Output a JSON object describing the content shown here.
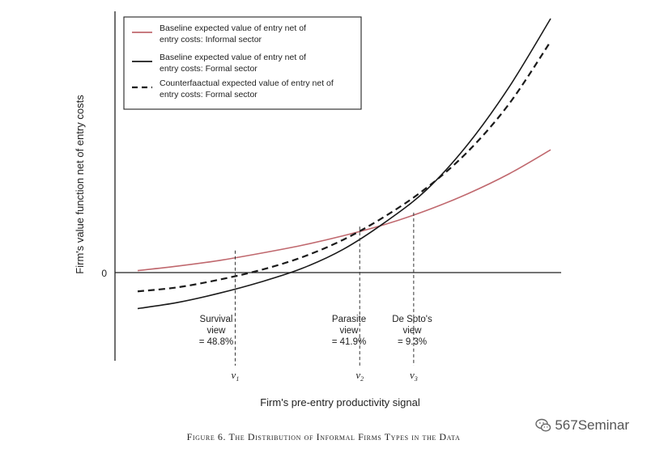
{
  "chart_data": {
    "type": "line",
    "xlabel": "Firm's pre-entry productivity signal",
    "ylabel": "Firm's value function net of entry costs",
    "zero_label": "0",
    "grid": false,
    "legend_placement": "top-left",
    "series": [
      {
        "name": "Baseline expected value of entry net of entry costs: Informal sector",
        "style": "solid",
        "color": "#c0686e",
        "x": [
          0.05,
          1,
          2,
          3,
          4,
          5,
          6,
          7,
          8,
          9,
          10
        ],
        "y": [
          0.05,
          0.16,
          0.3,
          0.48,
          0.68,
          0.92,
          1.2,
          1.55,
          1.97,
          2.47,
          3.07
        ]
      },
      {
        "name": "Baseline expected value of entry net of entry costs: Formal sector",
        "style": "solid",
        "color": "#1a1a1a",
        "x": [
          0.05,
          1,
          2,
          3,
          4,
          5,
          6,
          7,
          8,
          9,
          10
        ],
        "y": [
          -0.9,
          -0.75,
          -0.52,
          -0.24,
          0.1,
          0.58,
          1.25,
          2.06,
          3.2,
          4.64,
          6.35
        ]
      },
      {
        "name": "Counterfaactual expected value of entry net of entry costs: Formal sector",
        "style": "dashed",
        "color": "#1a1a1a",
        "x": [
          0.05,
          1,
          2,
          3,
          4,
          5,
          6,
          7,
          8,
          9,
          10
        ],
        "y": [
          -0.47,
          -0.37,
          -0.18,
          0.06,
          0.38,
          0.82,
          1.4,
          2.11,
          3.02,
          4.22,
          5.78
        ]
      }
    ],
    "thresholds": [
      {
        "label": "ν",
        "sub": "1",
        "x": 2.4,
        "region_text": [
          "Survival",
          "view",
          "= 48.8%"
        ]
      },
      {
        "label": "ν",
        "sub": "2",
        "x": 5.4,
        "region_text": [
          "Parasite",
          "view",
          "= 41.9%"
        ]
      },
      {
        "label": "ν",
        "sub": "3",
        "x": 6.7,
        "region_text": [
          "De Soto's",
          "view",
          "= 9.3%"
        ]
      }
    ],
    "caption": "Figure 6. The Distribution of Informal Firms Types in the Data"
  },
  "watermark": {
    "text": "567Seminar",
    "icon": "wechat-icon"
  }
}
